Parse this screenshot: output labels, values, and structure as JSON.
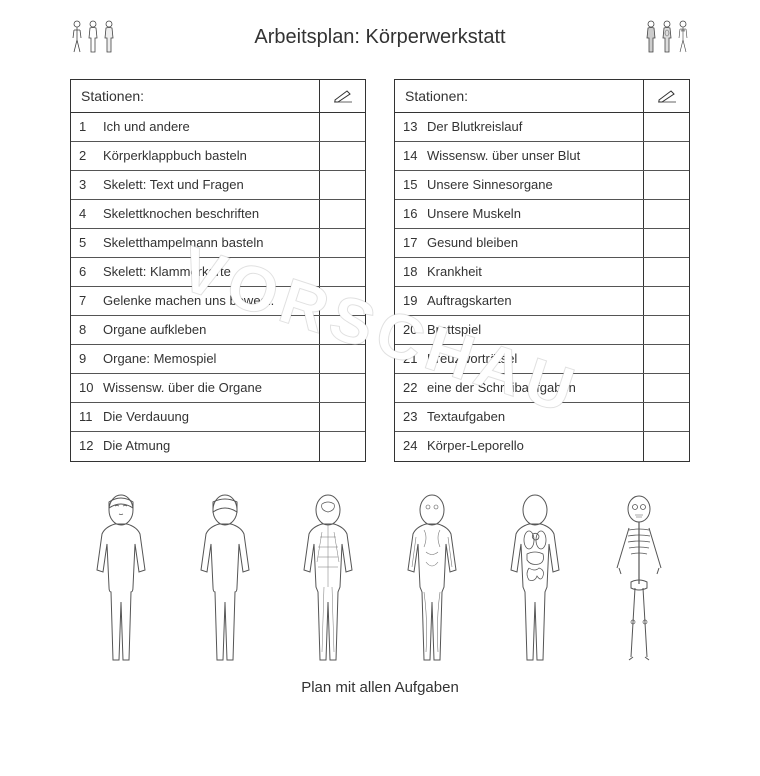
{
  "title": "Arbeitsplan: Körperwerkstatt",
  "watermark": "VORSCHAU",
  "caption": "Plan mit allen Aufgaben",
  "table_header": "Stationen:",
  "left_table": {
    "rows": [
      {
        "num": "1",
        "text": "Ich und andere"
      },
      {
        "num": "2",
        "text": "Körperklappbuch basteln"
      },
      {
        "num": "3",
        "text": "Skelett: Text und Fragen"
      },
      {
        "num": "4",
        "text": "Skelettknochen beschriften"
      },
      {
        "num": "5",
        "text": "Skeletthampelmann basteln"
      },
      {
        "num": "6",
        "text": "Skelett: Klammerkarte"
      },
      {
        "num": "7",
        "text": "Gelenke machen uns bewegl."
      },
      {
        "num": "8",
        "text": "Organe aufkleben"
      },
      {
        "num": "9",
        "text": "Organe: Memospiel"
      },
      {
        "num": "10",
        "text": "Wissensw. über die Organe"
      },
      {
        "num": "11",
        "text": "Die Verdauung"
      },
      {
        "num": "12",
        "text": "Die Atmung"
      }
    ]
  },
  "right_table": {
    "rows": [
      {
        "num": "13",
        "text": "Der Blutkreislauf"
      },
      {
        "num": "14",
        "text": "Wissensw. über unser Blut"
      },
      {
        "num": "15",
        "text": "Unsere Sinnesorgane"
      },
      {
        "num": "16",
        "text": "Unsere Muskeln"
      },
      {
        "num": "17",
        "text": "Gesund bleiben"
      },
      {
        "num": "18",
        "text": "Krankheit"
      },
      {
        "num": "19",
        "text": "Auftragskarten"
      },
      {
        "num": "20",
        "text": "Brettspiel"
      },
      {
        "num": "21",
        "text": "Kreuzworträtsel"
      },
      {
        "num": "22",
        "text": "eine der Schreibaufgaben"
      },
      {
        "num": "23",
        "text": "Textaufgaben"
      },
      {
        "num": "24",
        "text": "Körper-Leporello"
      }
    ]
  },
  "colors": {
    "text": "#333333",
    "border": "#333333",
    "background": "#ffffff",
    "watermark_stroke": "rgba(0,0,0,0.12)"
  },
  "body_figures": [
    "body-skin-front",
    "body-skin-back",
    "body-nervous",
    "body-muscular",
    "body-organs",
    "body-skeleton"
  ],
  "header_icons_left": [
    "mini-body-clothed",
    "mini-body-outline",
    "mini-body-front"
  ],
  "header_icons_right": [
    "mini-body-nervous",
    "mini-body-organs",
    "mini-body-skeleton"
  ]
}
